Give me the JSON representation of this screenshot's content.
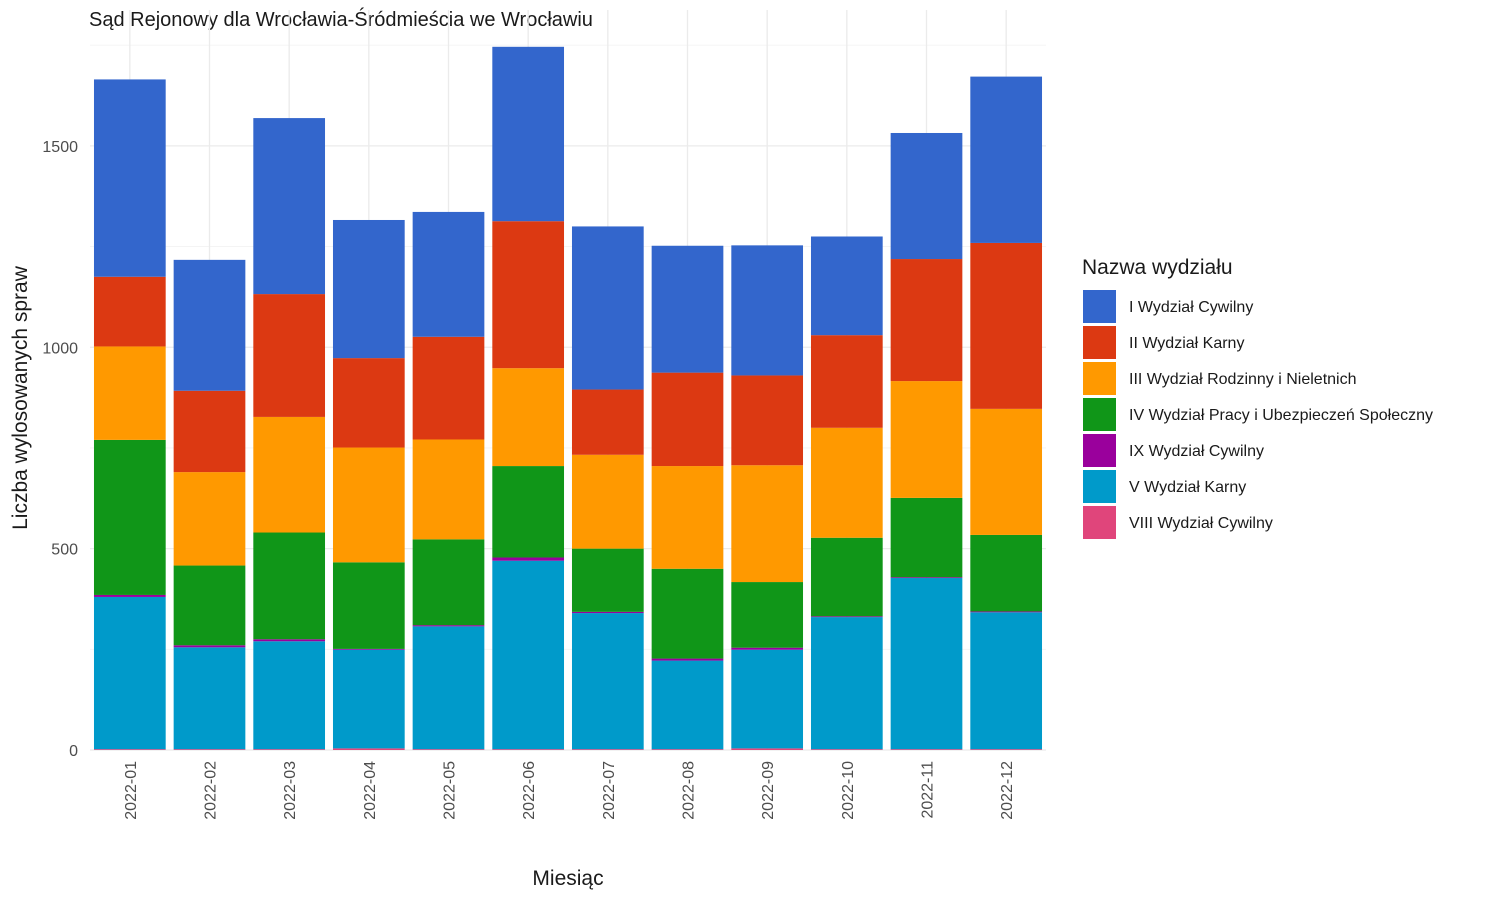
{
  "chart_data": {
    "type": "bar",
    "stacked": true,
    "title": "Sąd Rejonowy dla Wrocławia-Śródmieścia we Wrocławiu",
    "xlabel": "Miesiąc",
    "ylabel": "Liczba wylosowanych spraw",
    "ylim": [
      0,
      1830
    ],
    "yticks": [
      0,
      500,
      1000,
      1500
    ],
    "ytick_labels": [
      "0",
      "500",
      "1000",
      "1500"
    ],
    "grid": true,
    "legend": {
      "title": "Nazwa wydziału",
      "position": "right"
    },
    "categories": [
      "2022-01",
      "2022-02",
      "2022-03",
      "2022-04",
      "2022-05",
      "2022-06",
      "2022-07",
      "2022-08",
      "2022-09",
      "2022-10",
      "2022-11",
      "2022-12"
    ],
    "series": [
      {
        "name": "VIII Wydział Cywilny",
        "color": "#E0457B",
        "values": [
          2,
          2,
          2,
          4,
          2,
          2,
          2,
          2,
          4,
          2,
          2,
          2
        ]
      },
      {
        "name": "V Wydział Karny",
        "color": "#009ACA",
        "values": [
          378,
          253,
          268,
          245,
          305,
          468,
          338,
          220,
          245,
          328,
          425,
          340
        ]
      },
      {
        "name": "IX Wydział Cywilny",
        "color": "#9A009C",
        "values": [
          5,
          5,
          5,
          2,
          3,
          8,
          3,
          5,
          5,
          2,
          2,
          2
        ]
      },
      {
        "name": "IV Wydział Pracy i Ubezpieczeń Społeczny",
        "color": "#109618",
        "values": [
          385,
          198,
          265,
          215,
          213,
          227,
          157,
          223,
          163,
          195,
          197,
          190
        ]
      },
      {
        "name": "III Wydział Rodzinny i Nieletnich",
        "color": "#FF9900",
        "values": [
          232,
          232,
          287,
          285,
          248,
          243,
          233,
          255,
          290,
          273,
          290,
          313
        ]
      },
      {
        "name": "II Wydział Karny",
        "color": "#DC3912",
        "values": [
          173,
          202,
          305,
          222,
          255,
          365,
          162,
          232,
          223,
          230,
          303,
          412
        ]
      },
      {
        "name": "I Wydział Cywilny",
        "color": "#3366CC",
        "values": [
          490,
          325,
          437,
          343,
          310,
          433,
          405,
          315,
          323,
          245,
          313,
          413
        ]
      }
    ]
  }
}
